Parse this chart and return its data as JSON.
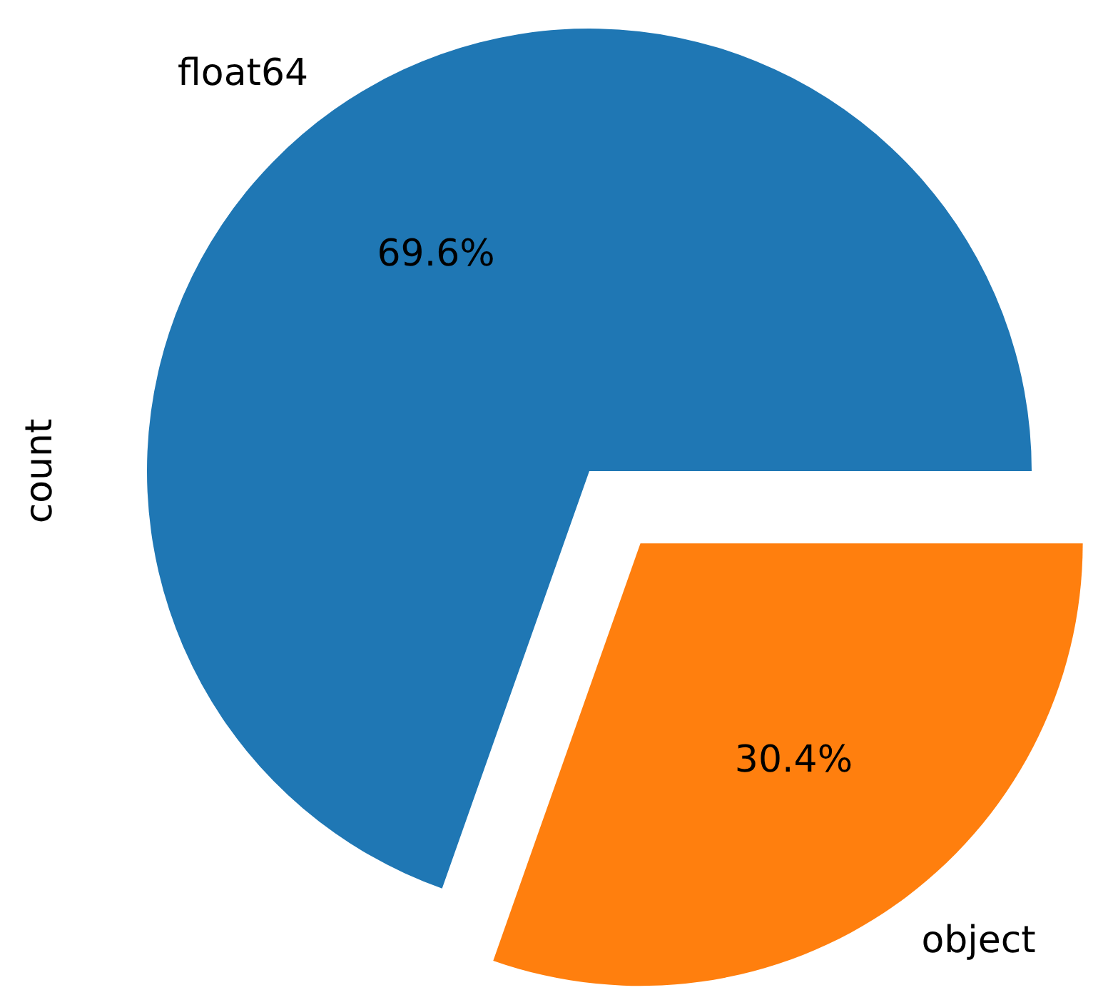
{
  "chart_data": {
    "type": "pie",
    "ylabel": "count",
    "categories": [
      "float64",
      "object"
    ],
    "values": [
      69.6,
      30.4
    ],
    "colors": [
      "#1f77b4",
      "#ff7f0e"
    ],
    "value_labels": [
      "69.6%",
      "30.4%"
    ]
  }
}
